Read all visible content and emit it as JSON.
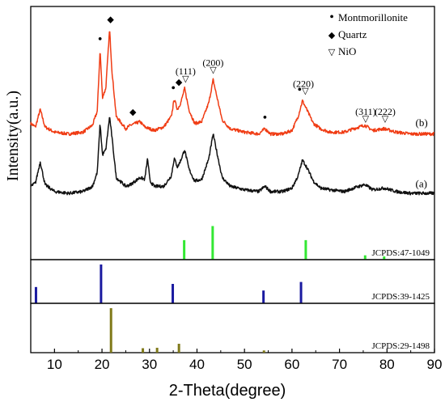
{
  "chart_data": {
    "type": "line",
    "xlabel": "2-Theta(degree)",
    "ylabel": "Intensity(a.u.)",
    "xlim": [
      5,
      90
    ],
    "x_ticks": [
      "10",
      "20",
      "30",
      "40",
      "50",
      "60",
      "70",
      "80",
      "90"
    ],
    "legend": {
      "position": "top-right",
      "entries": [
        {
          "symbol": "•",
          "label": "Montmorillonite"
        },
        {
          "symbol": "◆",
          "label": "Quartz"
        },
        {
          "symbol": "▽",
          "label": "NiO"
        }
      ]
    },
    "series": [
      {
        "name": "(b)",
        "color": "#f03c14",
        "baseline": 0.72,
        "points": [
          [
            5,
            0.78
          ],
          [
            6,
            0.76
          ],
          [
            7,
            0.86
          ],
          [
            8,
            0.76
          ],
          [
            10,
            0.73
          ],
          [
            13,
            0.72
          ],
          [
            16,
            0.73
          ],
          [
            18,
            0.77
          ],
          [
            19,
            0.85
          ],
          [
            19.6,
            1.2
          ],
          [
            20.1,
            0.93
          ],
          [
            20.8,
            0.98
          ],
          [
            21.6,
            1.32
          ],
          [
            22.1,
            1.08
          ],
          [
            23,
            0.82
          ],
          [
            25,
            0.75
          ],
          [
            26,
            0.77
          ],
          [
            27,
            0.78
          ],
          [
            28,
            0.79
          ],
          [
            29,
            0.76
          ],
          [
            31,
            0.74
          ],
          [
            33,
            0.76
          ],
          [
            34.6,
            0.82
          ],
          [
            35.2,
            0.92
          ],
          [
            35.9,
            0.86
          ],
          [
            36.6,
            0.9
          ],
          [
            37.4,
            0.98
          ],
          [
            38.3,
            0.86
          ],
          [
            39.5,
            0.78
          ],
          [
            41,
            0.79
          ],
          [
            42.5,
            0.9
          ],
          [
            43.4,
            1.03
          ],
          [
            44.3,
            0.92
          ],
          [
            45.3,
            0.8
          ],
          [
            47,
            0.75
          ],
          [
            50,
            0.73
          ],
          [
            53,
            0.72
          ],
          [
            54.3,
            0.75
          ],
          [
            55.5,
            0.72
          ],
          [
            58,
            0.72
          ],
          [
            60,
            0.74
          ],
          [
            61.3,
            0.82
          ],
          [
            62.2,
            0.91
          ],
          [
            63.1,
            0.86
          ],
          [
            64.5,
            0.78
          ],
          [
            66,
            0.75
          ],
          [
            68,
            0.73
          ],
          [
            71,
            0.73
          ],
          [
            73,
            0.75
          ],
          [
            75.3,
            0.77
          ],
          [
            77,
            0.74
          ],
          [
            79.4,
            0.75
          ],
          [
            82,
            0.73
          ],
          [
            85,
            0.72
          ],
          [
            88,
            0.72
          ],
          [
            90,
            0.72
          ]
        ]
      },
      {
        "name": "(a)",
        "color": "#111111",
        "baseline": 0.38,
        "points": [
          [
            5,
            0.42
          ],
          [
            6,
            0.44
          ],
          [
            7,
            0.56
          ],
          [
            8,
            0.43
          ],
          [
            10,
            0.39
          ],
          [
            13,
            0.38
          ],
          [
            16,
            0.39
          ],
          [
            18,
            0.42
          ],
          [
            19,
            0.5
          ],
          [
            19.6,
            0.78
          ],
          [
            20.1,
            0.6
          ],
          [
            20.8,
            0.63
          ],
          [
            21.6,
            0.82
          ],
          [
            22.1,
            0.7
          ],
          [
            23,
            0.47
          ],
          [
            25,
            0.42
          ],
          [
            26,
            0.43
          ],
          [
            27,
            0.45
          ],
          [
            28,
            0.47
          ],
          [
            29,
            0.46
          ],
          [
            29.6,
            0.58
          ],
          [
            30.1,
            0.45
          ],
          [
            31,
            0.42
          ],
          [
            33,
            0.42
          ],
          [
            34.6,
            0.48
          ],
          [
            35.2,
            0.58
          ],
          [
            35.9,
            0.53
          ],
          [
            36.6,
            0.57
          ],
          [
            37.4,
            0.63
          ],
          [
            38.3,
            0.52
          ],
          [
            39.5,
            0.45
          ],
          [
            41,
            0.46
          ],
          [
            42.5,
            0.58
          ],
          [
            43.4,
            0.72
          ],
          [
            44.3,
            0.6
          ],
          [
            45.3,
            0.47
          ],
          [
            47,
            0.42
          ],
          [
            50,
            0.4
          ],
          [
            53,
            0.39
          ],
          [
            54.3,
            0.42
          ],
          [
            55.5,
            0.39
          ],
          [
            58,
            0.39
          ],
          [
            60,
            0.41
          ],
          [
            61.3,
            0.48
          ],
          [
            62.2,
            0.57
          ],
          [
            63.1,
            0.53
          ],
          [
            64.5,
            0.45
          ],
          [
            66,
            0.41
          ],
          [
            68,
            0.4
          ],
          [
            71,
            0.39
          ],
          [
            73,
            0.41
          ],
          [
            75.3,
            0.43
          ],
          [
            77,
            0.4
          ],
          [
            79.4,
            0.41
          ],
          [
            82,
            0.39
          ],
          [
            85,
            0.38
          ],
          [
            88,
            0.38
          ],
          [
            90,
            0.38
          ]
        ]
      }
    ],
    "series_labels": [
      {
        "text": "(b)",
        "x": 86,
        "y": 0.765
      },
      {
        "text": "(a)",
        "x": 86,
        "y": 0.415
      }
    ],
    "annotations": [
      {
        "text": "•",
        "x": 19.6,
        "y": 1.24
      },
      {
        "text": "◆",
        "x": 21.8,
        "y": 1.36
      },
      {
        "text": "◆",
        "x": 26.5,
        "y": 0.83
      },
      {
        "text": "•",
        "x": 35.0,
        "y": 0.96
      },
      {
        "text": "◆",
        "x": 36.2,
        "y": 1.0
      },
      {
        "text": "▽",
        "x": 37.6,
        "y": 1.02
      },
      {
        "text": "(111)",
        "x": 37.6,
        "y": 1.06
      },
      {
        "text": "▽",
        "x": 43.4,
        "y": 1.07
      },
      {
        "text": "(200)",
        "x": 43.4,
        "y": 1.11
      },
      {
        "text": "•",
        "x": 54.3,
        "y": 0.79
      },
      {
        "text": "•",
        "x": 61.6,
        "y": 0.95
      },
      {
        "text": "▽",
        "x": 62.8,
        "y": 0.95
      },
      {
        "text": "(220)",
        "x": 62.4,
        "y": 0.99
      },
      {
        "text": "▽",
        "x": 75.5,
        "y": 0.79
      },
      {
        "text": "(311)",
        "x": 75.5,
        "y": 0.83
      },
      {
        "text": "▽",
        "x": 79.6,
        "y": 0.79
      },
      {
        "text": "(222)",
        "x": 79.6,
        "y": 0.83
      }
    ],
    "reference_panels": [
      {
        "label": "JCPDS:47-1049",
        "color": "#33e833",
        "lines": [
          [
            37.3,
            0.36
          ],
          [
            43.3,
            0.62
          ],
          [
            62.9,
            0.36
          ],
          [
            75.4,
            0.08
          ],
          [
            79.4,
            0.06
          ]
        ]
      },
      {
        "label": "JCPDS:39-1425",
        "color": "#1a1aa0",
        "lines": [
          [
            6.1,
            0.42
          ],
          [
            19.8,
            1.0
          ],
          [
            34.9,
            0.5
          ],
          [
            54.0,
            0.33
          ],
          [
            61.9,
            0.55
          ]
        ]
      },
      {
        "label": "JCPDS:29-1498",
        "color": "#807a1a",
        "lines": [
          [
            21.9,
            1.0
          ],
          [
            28.6,
            0.1
          ],
          [
            31.6,
            0.11
          ],
          [
            36.2,
            0.2
          ],
          [
            54.1,
            0.05
          ]
        ]
      }
    ]
  }
}
